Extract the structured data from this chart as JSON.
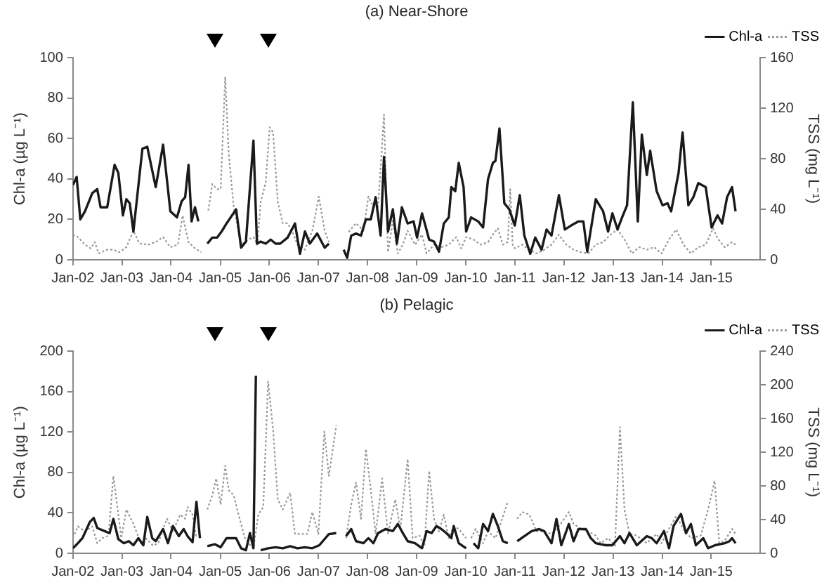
{
  "chart_data": [
    {
      "type": "line",
      "title": "(a) Near-Shore",
      "ylabel": "Chl-a (µg L⁻¹)",
      "y2label": "TSS (mg L⁻¹)",
      "xlim": [
        "2002-01",
        "2016-01"
      ],
      "xticks": [
        {
          "value": "2002-01",
          "label": "Jan-02"
        },
        {
          "value": "2003-01",
          "label": "Jan-03"
        },
        {
          "value": "2004-01",
          "label": "Jan-04"
        },
        {
          "value": "2005-01",
          "label": "Jan-05"
        },
        {
          "value": "2006-01",
          "label": "Jan-06"
        },
        {
          "value": "2007-01",
          "label": "Jan-07"
        },
        {
          "value": "2008-01",
          "label": "Jan-08"
        },
        {
          "value": "2009-01",
          "label": "Jan-09"
        },
        {
          "value": "2010-01",
          "label": "Jan-10"
        },
        {
          "value": "2011-01",
          "label": "Jan-11"
        },
        {
          "value": "2012-01",
          "label": "Jan-12"
        },
        {
          "value": "2013-01",
          "label": "Jan-13"
        },
        {
          "value": "2014-01",
          "label": "Jan-14"
        },
        {
          "value": "2015-01",
          "label": "Jan-15"
        }
      ],
      "ylim": [
        0,
        100
      ],
      "yticks": [
        0,
        20,
        40,
        60,
        80,
        100
      ],
      "y2lim": [
        0,
        160
      ],
      "y2ticks": [
        0,
        40,
        80,
        120,
        160
      ],
      "legend": "top right",
      "grid": false,
      "marker": "none",
      "series": [
        {
          "name": "Chl-a",
          "color": "#1a1a1a",
          "line_style": "solid",
          "x": [
            "2002-01-01",
            "2002-01-29",
            "2002-02-25",
            "2002-04-01",
            "2002-05-25",
            "2002-07-01",
            "2002-07-26",
            "2002-09-13",
            "2002-11-07",
            "2002-12-05",
            "2003-01-08",
            "2003-02-03",
            "2003-02-28",
            "2003-03-27",
            "2003-06-02",
            "2003-07-08",
            "2003-09-09",
            "2003-11-03",
            "2003-12-27",
            "2004-02-14",
            "2004-03-20",
            "2004-04-15",
            "2004-05-10",
            "2004-06-02",
            "2004-06-27",
            "2004-07-22",
            "2004-08-14",
            "2004-09-27",
            "2004-11-03",
            "2004-12-09",
            "2005-01-11",
            "2005-02-17",
            "2005-04-29",
            "2005-06-05",
            "2005-07-11",
            "2005-09-05",
            "2005-10-01",
            "2005-10-29",
            "2005-12-05",
            "2006-01-11",
            "2006-02-17",
            "2006-03-23",
            "2006-05-17",
            "2006-07-11",
            "2006-08-17",
            "2006-09-23",
            "2006-10-29",
            "2006-12-23",
            "2007-02-17",
            "2007-03-20",
            "2007-05-07",
            "2007-07-08",
            "2007-08-03",
            "2007-09-02",
            "2007-10-08",
            "2007-11-14",
            "2007-12-20",
            "2008-01-26",
            "2008-03-02",
            "2008-04-08",
            "2008-05-03",
            "2008-06-02",
            "2008-07-08",
            "2008-08-07",
            "2008-09-13",
            "2008-10-26",
            "2008-12-09",
            "2009-01-04",
            "2009-02-10",
            "2009-04-04",
            "2009-05-10",
            "2009-06-16",
            "2009-07-22",
            "2009-08-28",
            "2009-09-16",
            "2009-10-15",
            "2009-11-10",
            "2009-12-16",
            "2010-01-04",
            "2010-02-10",
            "2010-04-04",
            "2010-05-10",
            "2010-06-16",
            "2010-07-22",
            "2010-08-10",
            "2010-09-09",
            "2010-10-15",
            "2010-11-21",
            "2011-01-01",
            "2011-02-07",
            "2011-03-13",
            "2011-04-26",
            "2011-06-02",
            "2011-07-19",
            "2011-08-25",
            "2011-10-01",
            "2011-11-25",
            "2012-01-08",
            "2012-02-25",
            "2012-04-19",
            "2012-05-25",
            "2012-06-23",
            "2012-08-25",
            "2012-10-19",
            "2012-11-25",
            "2012-12-27",
            "2013-02-03",
            "2013-03-09",
            "2013-04-15",
            "2013-05-28",
            "2013-07-04",
            "2013-08-03",
            "2013-09-09",
            "2013-10-04",
            "2013-11-21",
            "2014-01-04",
            "2014-02-10",
            "2014-03-09",
            "2014-05-03",
            "2014-06-02",
            "2014-07-15",
            "2014-08-21",
            "2014-09-27",
            "2014-11-21",
            "2015-01-04",
            "2015-02-17",
            "2015-03-23",
            "2015-04-29",
            "2015-06-05",
            "2015-07-01"
          ],
          "values": [
            37,
            41,
            20,
            24,
            33,
            35,
            26,
            26,
            47,
            43,
            22,
            30,
            28,
            14,
            55,
            56,
            36,
            57,
            24,
            21,
            29,
            31,
            47,
            19,
            26,
            19,
            null,
            8,
            11,
            11,
            14,
            18,
            25,
            6,
            9,
            59,
            8,
            9,
            8,
            10,
            8,
            8,
            11,
            18,
            3,
            14,
            8,
            13,
            6,
            8,
            null,
            5,
            1,
            12,
            13,
            12,
            20,
            20,
            31,
            12,
            51,
            14,
            25,
            8,
            26,
            18,
            19,
            11,
            23,
            10,
            9,
            4,
            18,
            21,
            36,
            34,
            48,
            36,
            14,
            21,
            19,
            16,
            40,
            48,
            49,
            65,
            28,
            25,
            17,
            32,
            12,
            3,
            11,
            5,
            15,
            12,
            32,
            15,
            17,
            19,
            19,
            4,
            30,
            24,
            14,
            23,
            15,
            21,
            27,
            78,
            19,
            62,
            42,
            54,
            34,
            27,
            28,
            24,
            43,
            63,
            27,
            31,
            38,
            36,
            16,
            22,
            18,
            31,
            36,
            24
          ]
        },
        {
          "name": "TSS",
          "color": "#999999",
          "line_style": "dotted",
          "axis": "y2",
          "x": [
            "2002-01-01",
            "2002-02-07",
            "2002-04-01",
            "2002-05-14",
            "2002-06-13",
            "2002-07-11",
            "2002-09-13",
            "2002-10-29",
            "2002-12-13",
            "2003-02-03",
            "2003-03-27",
            "2003-05-10",
            "2003-07-15",
            "2003-09-09",
            "2003-11-03",
            "2003-12-27",
            "2004-02-21",
            "2004-03-27",
            "2004-05-10",
            "2004-06-27",
            "2004-08-14",
            "2004-09-05",
            "2004-10-04",
            "2004-11-03",
            "2004-12-09",
            "2005-01-04",
            "2005-02-07",
            "2005-03-05",
            "2005-04-11",
            "2005-06-05",
            "2005-07-29",
            "2005-09-05",
            "2005-10-04",
            "2005-10-29",
            "2005-12-05",
            "2006-01-04",
            "2006-01-29",
            "2006-03-05",
            "2006-04-11",
            "2006-05-17",
            "2006-06-23",
            "2006-07-29",
            "2006-09-23",
            "2006-11-17",
            "2007-01-04",
            "2007-02-17",
            "2007-03-20",
            "2007-05-07",
            "2007-08-14",
            "2007-10-08",
            "2007-12-02",
            "2008-01-08",
            "2008-02-14",
            "2008-03-20",
            "2008-05-03",
            "2008-06-02",
            "2008-07-08",
            "2008-08-14",
            "2008-09-20",
            "2008-10-26",
            "2008-12-20",
            "2009-02-10",
            "2009-03-16",
            "2009-05-10",
            "2009-07-04",
            "2009-08-28",
            "2009-10-22",
            "2009-11-28",
            "2010-01-04",
            "2010-02-28",
            "2010-04-22",
            "2010-06-16",
            "2010-07-22",
            "2010-08-28",
            "2010-10-04",
            "2010-11-10",
            "2010-11-28",
            "2010-12-16",
            "2011-01-01",
            "2011-02-25",
            "2011-04-19",
            "2011-06-13",
            "2011-08-07",
            "2011-10-01",
            "2011-11-25",
            "2012-01-19",
            "2012-03-13",
            "2012-05-07",
            "2012-07-01",
            "2012-08-25",
            "2012-10-19",
            "2012-12-13",
            "2013-02-03",
            "2013-03-27",
            "2013-05-21",
            "2013-07-15",
            "2013-09-09",
            "2013-11-03",
            "2013-12-27",
            "2014-02-21",
            "2014-04-15",
            "2014-06-09",
            "2014-08-03",
            "2014-09-27",
            "2014-11-21",
            "2015-01-15",
            "2015-02-17",
            "2015-04-11",
            "2015-06-05",
            "2015-07-01"
          ],
          "values": [
            20,
            18,
            12,
            9,
            14,
            5,
            8,
            8,
            6,
            10,
            23,
            13,
            12,
            14,
            18,
            10,
            12,
            35,
            14,
            9,
            6,
            null,
            39,
            60,
            56,
            56,
            145,
            84,
            42,
            12,
            16,
            18,
            12,
            46,
            61,
            105,
            101,
            46,
            29,
            29,
            22,
            12,
            8,
            23,
            50,
            23,
            14,
            null,
            22,
            29,
            23,
            50,
            42,
            42,
            115,
            6,
            31,
            5,
            12,
            23,
            12,
            20,
            5,
            12,
            10,
            12,
            18,
            9,
            18,
            16,
            12,
            14,
            20,
            25,
            12,
            14,
            56,
            12,
            9,
            12,
            8,
            5,
            8,
            12,
            20,
            12,
            8,
            6,
            5,
            12,
            14,
            20,
            24,
            16,
            5,
            10,
            8,
            10,
            5,
            16,
            24,
            12,
            5,
            10,
            12,
            25,
            17,
            10,
            14,
            12
          ]
        }
      ]
    },
    {
      "type": "line",
      "title": "(b) Pelagic",
      "ylabel": "Chl-a (µg L⁻¹)",
      "y2label": "TSS (mg L⁻¹)",
      "xlim": [
        "2002-01",
        "2016-01"
      ],
      "xticks": [
        {
          "value": "2002-01",
          "label": "Jan-02"
        },
        {
          "value": "2003-01",
          "label": "Jan-03"
        },
        {
          "value": "2004-01",
          "label": "Jan-04"
        },
        {
          "value": "2005-01",
          "label": "Jan-05"
        },
        {
          "value": "2006-01",
          "label": "Jan-06"
        },
        {
          "value": "2007-01",
          "label": "Jan-07"
        },
        {
          "value": "2008-01",
          "label": "Jan-08"
        },
        {
          "value": "2009-01",
          "label": "Jan-09"
        },
        {
          "value": "2010-01",
          "label": "Jan-10"
        },
        {
          "value": "2011-01",
          "label": "Jan-11"
        },
        {
          "value": "2012-01",
          "label": "Jan-12"
        },
        {
          "value": "2013-01",
          "label": "Jan-13"
        },
        {
          "value": "2014-01",
          "label": "Jan-14"
        },
        {
          "value": "2015-01",
          "label": "Jan-15"
        }
      ],
      "ylim": [
        0,
        200
      ],
      "yticks": [
        0,
        40,
        80,
        120,
        160,
        200
      ],
      "y2lim": [
        0,
        240
      ],
      "y2ticks": [
        0,
        40,
        80,
        120,
        160,
        200,
        240
      ],
      "legend": "top right",
      "grid": false,
      "marker": "none",
      "series": [
        {
          "name": "Chl-a",
          "color": "#1a1a1a",
          "line_style": "solid",
          "x": [
            "2002-01-01",
            "2002-02-07",
            "2002-03-13",
            "2002-05-07",
            "2002-06-05",
            "2002-07-01",
            "2002-08-25",
            "2002-10-01",
            "2002-10-29",
            "2002-12-05",
            "2003-01-15",
            "2003-02-21",
            "2003-03-27",
            "2003-05-03",
            "2003-06-09",
            "2003-07-08",
            "2003-08-14",
            "2003-09-09",
            "2003-11-03",
            "2003-12-09",
            "2004-01-15",
            "2004-02-28",
            "2004-04-04",
            "2004-05-03",
            "2004-06-09",
            "2004-07-08",
            "2004-08-03",
            "2004-08-28",
            "2004-09-27",
            "2004-11-21",
            "2005-01-04",
            "2005-02-17",
            "2005-04-29",
            "2005-06-05",
            "2005-07-11",
            "2005-08-10",
            "2005-09-05",
            "2005-09-23",
            "2005-10-04",
            "2005-10-29",
            "2005-12-23",
            "2006-02-17",
            "2006-04-11",
            "2006-06-05",
            "2006-07-29",
            "2006-09-23",
            "2006-11-17",
            "2007-01-08",
            "2007-03-20",
            "2007-05-14",
            "2007-06-13",
            "2007-07-26",
            "2007-09-02",
            "2007-10-08",
            "2007-12-02",
            "2008-01-08",
            "2008-02-14",
            "2008-03-20",
            "2008-05-14",
            "2008-07-08",
            "2008-08-14",
            "2008-09-20",
            "2008-10-26",
            "2008-12-20",
            "2009-02-10",
            "2009-03-16",
            "2009-04-22",
            "2009-05-28",
            "2009-07-04",
            "2009-08-10",
            "2009-09-16",
            "2009-10-04",
            "2009-11-10",
            "2010-01-04",
            "2010-01-29",
            "2010-02-28",
            "2010-04-04",
            "2010-05-10",
            "2010-06-16",
            "2010-07-22",
            "2010-08-28",
            "2010-10-04",
            "2010-11-10",
            "2010-12-16",
            "2011-01-19",
            "2011-03-13",
            "2011-05-07",
            "2011-07-01",
            "2011-08-07",
            "2011-10-01",
            "2011-11-07",
            "2011-12-13",
            "2012-02-07",
            "2012-03-13",
            "2012-04-19",
            "2012-06-13",
            "2012-07-19",
            "2012-08-25",
            "2012-11-07",
            "2012-12-27",
            "2013-02-21",
            "2013-03-27",
            "2013-05-03",
            "2013-06-27",
            "2013-09-09",
            "2013-10-15",
            "2013-11-21",
            "2014-01-15",
            "2014-02-21",
            "2014-03-27",
            "2014-05-21",
            "2014-06-27",
            "2014-08-03",
            "2014-09-09",
            "2014-11-03",
            "2014-12-09",
            "2015-01-29",
            "2015-04-11",
            "2015-05-17",
            "2015-06-05",
            "2015-07-01"
          ],
          "values": [
            5,
            10,
            15,
            31,
            35,
            25,
            22,
            20,
            34,
            14,
            10,
            12,
            8,
            15,
            8,
            36,
            15,
            12,
            24,
            10,
            27,
            17,
            24,
            17,
            11,
            51,
            15,
            null,
            7,
            9,
            6,
            15,
            15,
            5,
            3,
            20,
            5,
            176,
            null,
            3,
            5,
            6,
            5,
            7,
            5,
            6,
            5,
            8,
            19,
            20,
            null,
            17,
            24,
            12,
            10,
            15,
            10,
            20,
            24,
            22,
            29,
            20,
            12,
            10,
            5,
            22,
            20,
            27,
            24,
            20,
            15,
            27,
            10,
            5,
            null,
            10,
            5,
            29,
            22,
            39,
            27,
            12,
            10,
            null,
            12,
            17,
            22,
            24,
            22,
            10,
            34,
            8,
            29,
            12,
            24,
            24,
            15,
            10,
            8,
            8,
            17,
            10,
            20,
            8,
            17,
            15,
            10,
            22,
            5,
            27,
            39,
            20,
            29,
            8,
            15,
            5,
            8,
            10,
            12,
            15,
            10
          ]
        },
        {
          "name": "TSS",
          "color": "#999999",
          "line_style": "dotted",
          "axis": "y2",
          "x": [
            "2002-01-01",
            "2002-02-07",
            "2002-04-01",
            "2002-05-25",
            "2002-07-01",
            "2002-08-07",
            "2002-09-23",
            "2002-10-29",
            "2002-12-05",
            "2002-12-27",
            "2003-02-03",
            "2003-03-27",
            "2003-05-21",
            "2003-06-27",
            "2003-08-21",
            "2003-09-27",
            "2003-11-03",
            "2003-12-02",
            "2004-01-15",
            "2004-03-09",
            "2004-04-15",
            "2004-05-03",
            "2004-06-09",
            "2004-07-08",
            "2004-08-14",
            "2004-09-27",
            "2004-11-03",
            "2004-12-02",
            "2005-01-04",
            "2005-02-07",
            "2005-03-05",
            "2005-04-11",
            "2005-05-17",
            "2005-07-04",
            "2005-07-29",
            "2005-09-05",
            "2005-10-11",
            "2005-11-17",
            "2005-12-23",
            "2006-01-29",
            "2006-03-05",
            "2006-04-11",
            "2006-06-05",
            "2006-07-11",
            "2006-08-17",
            "2006-10-11",
            "2006-11-17",
            "2007-01-01",
            "2007-02-14",
            "2007-03-20",
            "2007-05-14",
            "2007-06-13",
            "2007-07-26",
            "2007-09-02",
            "2007-10-08",
            "2007-11-14",
            "2007-12-20",
            "2008-01-26",
            "2008-03-02",
            "2008-04-19",
            "2008-06-02",
            "2008-07-26",
            "2008-09-02",
            "2008-10-26",
            "2008-12-02",
            "2009-01-22",
            "2009-02-28",
            "2009-04-04",
            "2009-05-10",
            "2009-06-16",
            "2009-07-22",
            "2009-08-28",
            "2009-10-04",
            "2009-11-10",
            "2010-01-04",
            "2010-01-22",
            "2010-02-10",
            "2010-03-16",
            "2010-05-10",
            "2010-06-16",
            "2010-08-10",
            "2010-09-16",
            "2010-11-10",
            "2010-12-16",
            "2011-01-19",
            "2011-02-25",
            "2011-04-19",
            "2011-06-13",
            "2011-08-07",
            "2011-10-01",
            "2011-11-25",
            "2012-02-07",
            "2012-03-13",
            "2012-05-07",
            "2012-07-01",
            "2012-08-25",
            "2012-10-01",
            "2012-11-25",
            "2013-01-15",
            "2013-02-21",
            "2013-03-27",
            "2013-05-03",
            "2013-06-27",
            "2013-09-09",
            "2013-11-21",
            "2013-12-27",
            "2014-02-21",
            "2014-04-15",
            "2014-06-09",
            "2014-08-03",
            "2014-10-15",
            "2014-12-09",
            "2015-01-26",
            "2015-03-02",
            "2015-04-11",
            "2015-06-05",
            "2015-07-01"
          ],
          "values": [
            18,
            32,
            26,
            32,
            12,
            18,
            21,
            92,
            46,
            18,
            52,
            35,
            12,
            18,
            9,
            12,
            29,
            41,
            26,
            46,
            41,
            55,
            46,
            18,
            null,
            52,
            69,
            89,
            58,
            104,
            75,
            69,
            46,
            18,
            12,
            6,
            46,
            55,
            204,
            147,
            64,
            52,
            72,
            23,
            23,
            23,
            49,
            23,
            145,
            92,
            152,
            null,
            18,
            58,
            84,
            41,
            124,
            75,
            23,
            89,
            23,
            64,
            29,
            112,
            18,
            21,
            9,
            98,
            41,
            26,
            46,
            18,
            32,
            29,
            18,
            null,
            18,
            29,
            12,
            26,
            18,
            35,
            61,
            null,
            41,
            49,
            46,
            26,
            26,
            23,
            32,
            49,
            35,
            29,
            26,
            21,
            12,
            18,
            9,
            150,
            52,
            23,
            21,
            12,
            23,
            12,
            29,
            44,
            29,
            18,
            21,
            52,
            86,
            12,
            15,
            29,
            23
          ]
        }
      ]
    }
  ]
}
